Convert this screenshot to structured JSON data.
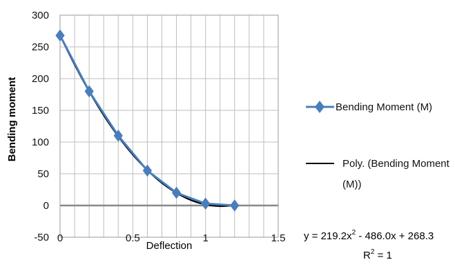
{
  "chart_data": {
    "type": "scatter",
    "xlabel": "Deflection",
    "ylabel": "Bending moment",
    "xlim": [
      0,
      1.5
    ],
    "ylim": [
      -50,
      300
    ],
    "x_ticks": [
      "0",
      "0.5",
      "1",
      "1.5"
    ],
    "y_ticks": [
      "-50",
      "0",
      "50",
      "100",
      "150",
      "200",
      "250",
      "300"
    ],
    "grid": true,
    "legend_position": "right",
    "series": [
      {
        "name": "Bending Moment (M)",
        "marker": "diamond",
        "color": "#4a7ebb",
        "x": [
          0,
          0.2,
          0.4,
          0.6,
          0.8,
          1.0,
          1.2
        ],
        "y": [
          268,
          180,
          110,
          55,
          20,
          3,
          0
        ]
      }
    ],
    "trendline": {
      "name": "Poly. (Bending Moment (M))",
      "name_lines": [
        "Poly. (Bending Moment",
        "(M))"
      ],
      "type": "polynomial",
      "order": 2,
      "color": "#000000",
      "coefficients": [
        219.2,
        -486.0,
        268.3
      ],
      "x_range": [
        0,
        1.2
      ],
      "equation": {
        "prefix": "y = 219.2x",
        "exp": "2",
        "suffix": " - 486.0x + 268.3"
      },
      "r2": {
        "base": "R",
        "exp": "2",
        "suffix": " = 1"
      }
    }
  }
}
